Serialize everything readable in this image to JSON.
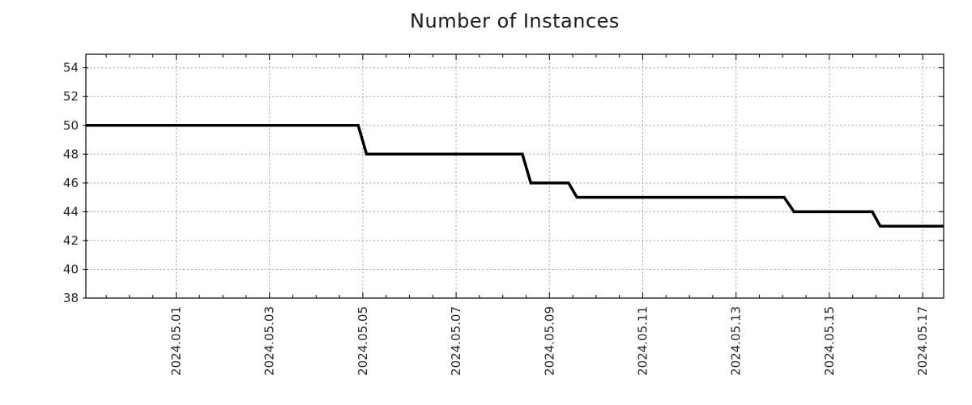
{
  "window": {
    "background": "#ffffff"
  },
  "chart_data": {
    "type": "line",
    "subtype": "step",
    "title": "Number of Instances",
    "xlabel": "",
    "ylabel": "",
    "legend": "none",
    "grid": "dotted",
    "x_axis": {
      "unit": "date",
      "note": "day numbers are May-2024 day offsets; 1.0 = 2024-05-01 00:00",
      "tick_labels": [
        "2024.05.01",
        "2024.05.03",
        "2024.05.05",
        "2024.05.07",
        "2024.05.09",
        "2024.05.11",
        "2024.05.13",
        "2024.05.15",
        "2024.05.17"
      ],
      "tick_positions_days": [
        1,
        3,
        5,
        7,
        9,
        11,
        13,
        15,
        17
      ],
      "minor_tick_step_days": 0.5,
      "range_days": [
        -0.936,
        17.449
      ],
      "range_readable": [
        "2024-04-29 ~01:30",
        "2024-05-17 ~10:45"
      ]
    },
    "y_axis": {
      "tick_labels": [
        "38",
        "40",
        "42",
        "44",
        "46",
        "48",
        "50",
        "52",
        "54"
      ],
      "tick_values": [
        38,
        40,
        42,
        44,
        46,
        48,
        50,
        52,
        54
      ],
      "range": [
        38,
        54.94
      ]
    },
    "series": [
      {
        "name": "Number of Instances",
        "color": "#000000",
        "line_width": 3.5,
        "points_x_unit": "days (1.0 = 2024-05-01 00:00)",
        "points": [
          [
            -0.936,
            50
          ],
          [
            4.9,
            50
          ],
          [
            5.08,
            48
          ],
          [
            8.42,
            48
          ],
          [
            8.6,
            46
          ],
          [
            9.41,
            46
          ],
          [
            9.59,
            45
          ],
          [
            14.03,
            45
          ],
          [
            14.24,
            44
          ],
          [
            15.92,
            44
          ],
          [
            16.09,
            43
          ],
          [
            17.449,
            43
          ]
        ],
        "levels": [
          {
            "value": 50,
            "from": "2024-04-29 ~01:30",
            "to": "2024-05-04 ~21:30"
          },
          {
            "value": 48,
            "from": "2024-05-05 ~02:00",
            "to": "2024-05-08 ~10:00"
          },
          {
            "value": 46,
            "from": "2024-05-08 ~14:30",
            "to": "2024-05-09 ~10:00"
          },
          {
            "value": 45,
            "from": "2024-05-09 ~14:00",
            "to": "2024-05-14 ~00:45"
          },
          {
            "value": 44,
            "from": "2024-05-14 ~05:45",
            "to": "2024-05-15 ~22:00"
          },
          {
            "value": 43,
            "from": "2024-05-16 ~02:00",
            "to": "2024-05-17 ~10:45"
          }
        ]
      }
    ],
    "colors": {
      "line": "#000000",
      "grid": "#9c9c9c",
      "axis": "#000000",
      "tick_text": "#262626",
      "title_text": "#1a1a1a",
      "background": "#ffffff"
    }
  }
}
